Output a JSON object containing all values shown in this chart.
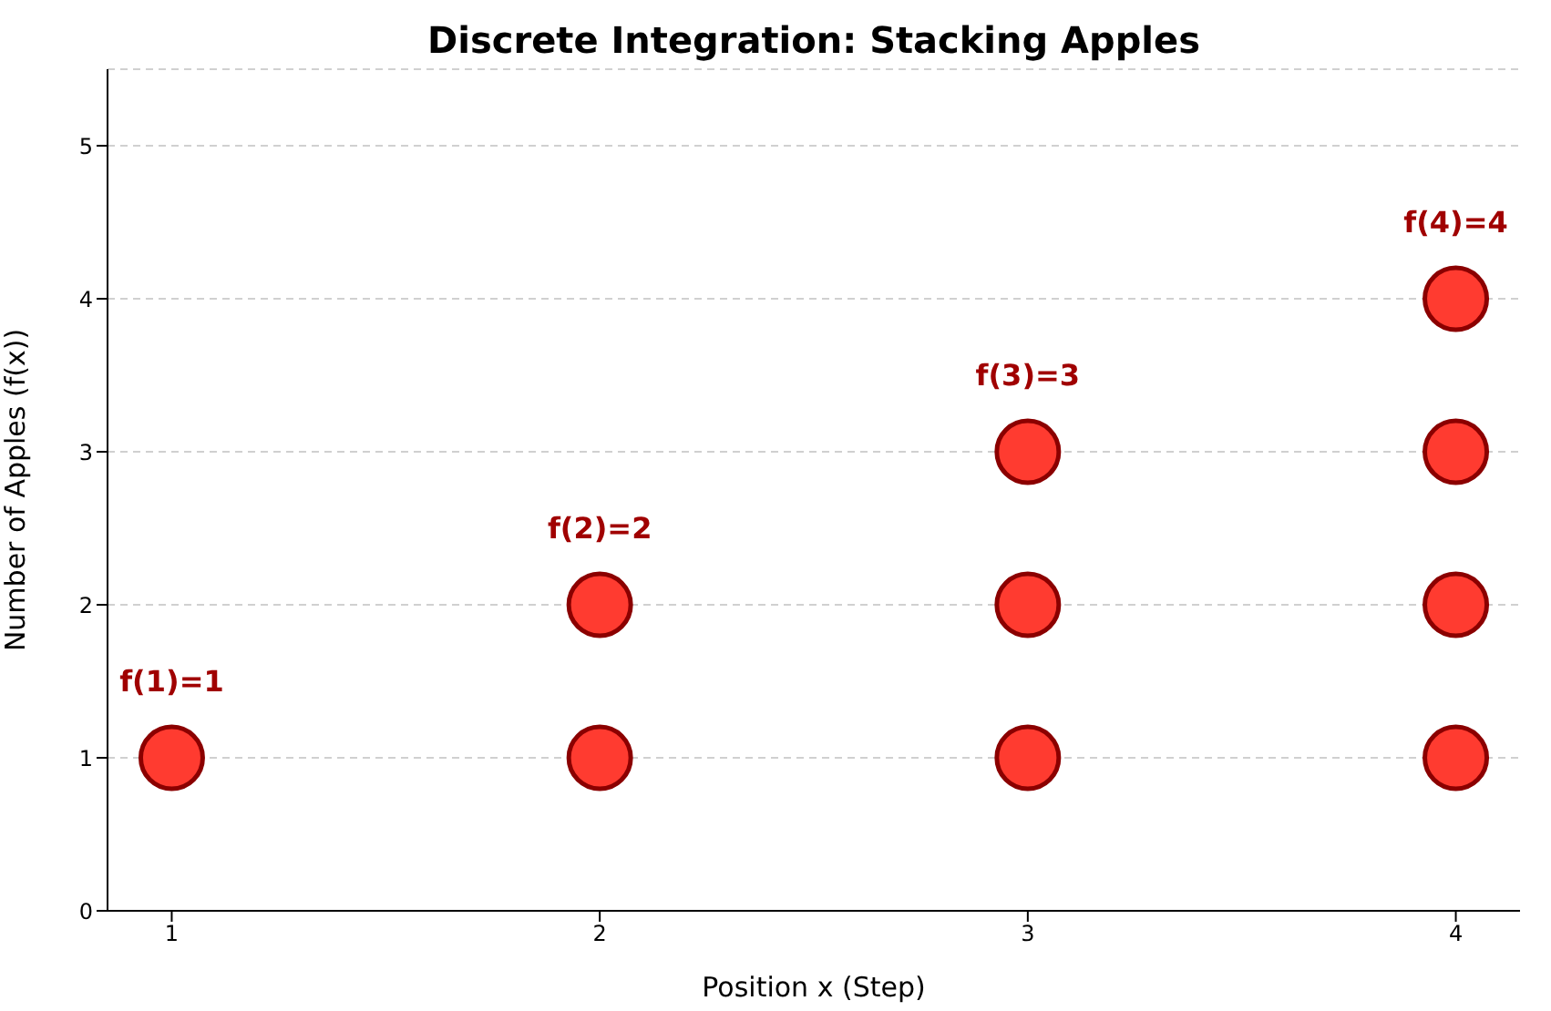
{
  "chart_data": {
    "type": "scatter",
    "title": "Discrete Integration: Stacking Apples",
    "xlabel": "Position x (Step)",
    "ylabel": "Number of Apples (f(x))",
    "series": [
      {
        "color": "#ff3b30",
        "x": [
          1,
          2,
          2,
          3,
          3,
          3,
          4,
          4,
          4,
          4
        ],
        "values": [
          1,
          1,
          2,
          1,
          2,
          3,
          1,
          2,
          3,
          4
        ]
      }
    ],
    "xlim": [
      0.85,
      4.15
    ],
    "xticks": [
      1,
      2,
      3,
      4
    ],
    "ylim": [
      0,
      5.5
    ],
    "yticks": [
      0,
      1,
      2,
      3,
      4,
      5
    ],
    "grid": "y",
    "legend": false,
    "marker": "circle",
    "annotations": [
      {
        "text": "f(1)=1",
        "x": 1,
        "y": 1
      },
      {
        "text": "f(2)=2",
        "x": 2,
        "y": 2
      },
      {
        "text": "f(3)=3",
        "x": 3,
        "y": 3
      },
      {
        "text": "f(4)=4",
        "x": 4,
        "y": 4
      }
    ]
  }
}
